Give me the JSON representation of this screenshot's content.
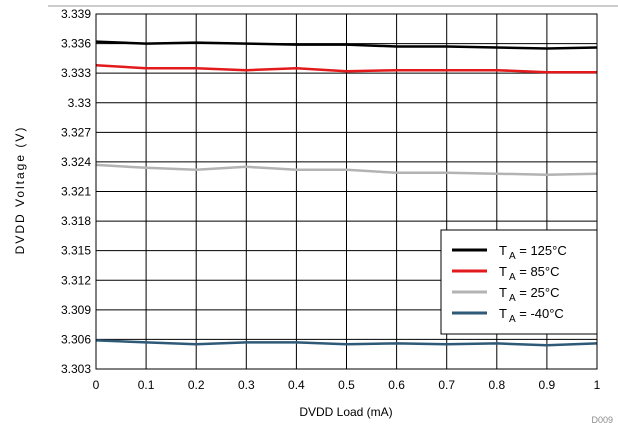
{
  "chart_data": {
    "type": "line",
    "title": "",
    "xlabel": "DVDD Load (mA)",
    "ylabel": "DVDD Voltage (V)",
    "xlim": [
      0,
      1
    ],
    "ylim": [
      3.303,
      3.339
    ],
    "x_ticks": [
      "0",
      "0.1",
      "0.2",
      "0.3",
      "0.4",
      "0.5",
      "0.6",
      "0.7",
      "0.8",
      "0.9",
      "1"
    ],
    "y_ticks": [
      "3.339",
      "3.336",
      "3.333",
      "3.33",
      "3.327",
      "3.324",
      "3.321",
      "3.318",
      "3.315",
      "3.312",
      "3.309",
      "3.306",
      "3.303"
    ],
    "grid": true,
    "legend_position": "bottom-right",
    "x": [
      0,
      0.1,
      0.2,
      0.3,
      0.4,
      0.5,
      0.6,
      0.7,
      0.8,
      0.9,
      1.0
    ],
    "series": [
      {
        "name": "TA = 125°C",
        "label_main": "T",
        "label_sub": "A",
        "label_rest": " = 125°C",
        "color": "#000000",
        "values": [
          3.3362,
          3.336,
          3.3361,
          3.336,
          3.3359,
          3.3359,
          3.3357,
          3.3357,
          3.3356,
          3.3355,
          3.3356
        ]
      },
      {
        "name": "TA = 85°C",
        "label_main": "T",
        "label_sub": "A",
        "label_rest": " = 85°C",
        "color": "#e31a1c",
        "values": [
          3.3338,
          3.3335,
          3.3335,
          3.3333,
          3.3335,
          3.3332,
          3.3333,
          3.3333,
          3.3333,
          3.3331,
          3.3331
        ]
      },
      {
        "name": "TA = 25°C",
        "label_main": "T",
        "label_sub": "A",
        "label_rest": " = 25°C",
        "color": "#b3b3b3",
        "values": [
          3.3237,
          3.3234,
          3.3232,
          3.3235,
          3.3232,
          3.3232,
          3.3229,
          3.3229,
          3.3228,
          3.3227,
          3.3228
        ]
      },
      {
        "name": "TA = -40°C",
        "label_main": "T",
        "label_sub": "A",
        "label_rest": " = -40°C",
        "color": "#2e5a78",
        "values": [
          3.3059,
          3.3057,
          3.3055,
          3.3057,
          3.3057,
          3.3055,
          3.3056,
          3.3055,
          3.3056,
          3.3054,
          3.3056
        ]
      }
    ],
    "figure_code": "D009"
  }
}
